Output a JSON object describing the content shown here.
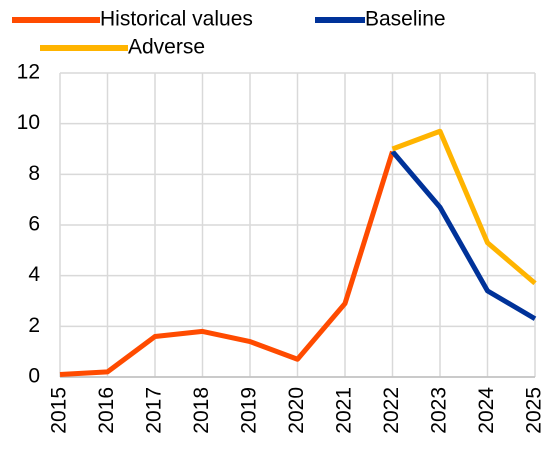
{
  "chart_data": {
    "type": "line",
    "categories": [
      "2015",
      "2016",
      "2017",
      "2018",
      "2019",
      "2020",
      "2021",
      "2022",
      "2023",
      "2024",
      "2025"
    ],
    "series": [
      {
        "name": "Historical values",
        "color": "#ff4b00",
        "values": [
          0.1,
          0.2,
          1.6,
          1.8,
          1.4,
          0.7,
          2.9,
          8.9,
          null,
          null,
          null
        ]
      },
      {
        "name": "Baseline",
        "color": "#003299",
        "values": [
          null,
          null,
          null,
          null,
          null,
          null,
          null,
          8.9,
          6.7,
          3.4,
          2.3
        ]
      },
      {
        "name": "Adverse",
        "color": "#ffb400",
        "values": [
          null,
          null,
          null,
          null,
          null,
          null,
          null,
          9.0,
          9.7,
          5.3,
          3.7
        ]
      }
    ],
    "ylim": [
      0,
      12
    ],
    "yticks": [
      0,
      2,
      4,
      6,
      8,
      10,
      12
    ],
    "grid": true
  }
}
